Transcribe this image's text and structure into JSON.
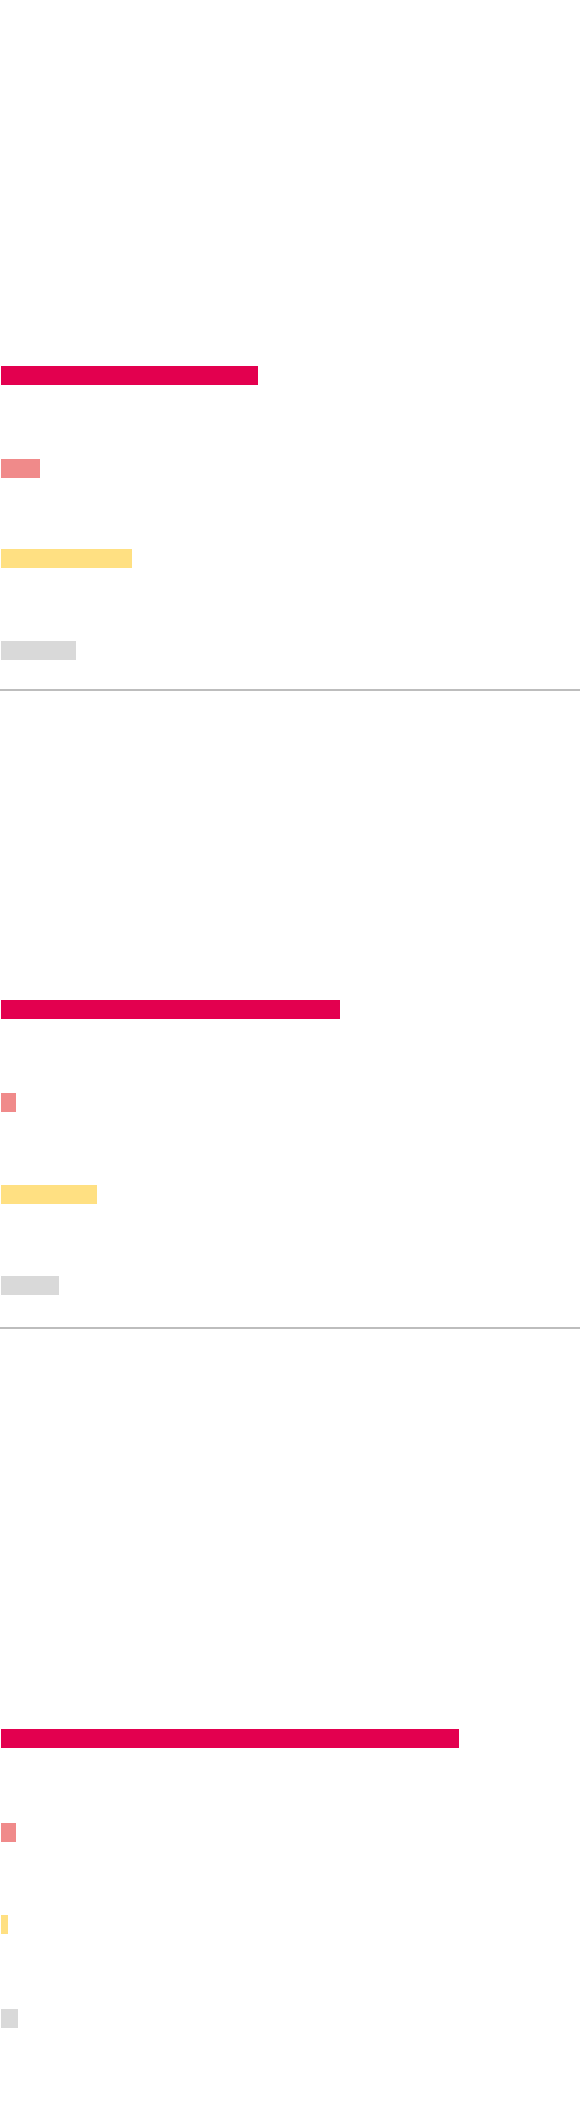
{
  "chart_data": [
    {
      "type": "bar",
      "orientation": "horizontal",
      "title": "",
      "categories": [
        "",
        "",
        "",
        ""
      ],
      "values": [
        258,
        39,
        131,
        75
      ],
      "colors": [
        "#e3004f",
        "#f08a8a",
        "#ffe082",
        "#d9d9d9"
      ],
      "xlim": [
        0,
        580
      ],
      "grid": false,
      "legend": "none"
    },
    {
      "type": "bar",
      "orientation": "horizontal",
      "title": "",
      "categories": [
        "",
        "",
        "",
        ""
      ],
      "values": [
        340,
        15,
        96,
        58
      ],
      "colors": [
        "#e3004f",
        "#f08a8a",
        "#ffe082",
        "#d9d9d9"
      ],
      "xlim": [
        0,
        580
      ],
      "grid": false,
      "legend": "none"
    },
    {
      "type": "bar",
      "orientation": "horizontal",
      "title": "",
      "categories": [
        "",
        "",
        "",
        ""
      ],
      "values": [
        460,
        15,
        7,
        17
      ],
      "colors": [
        "#e3004f",
        "#f08a8a",
        "#ffe082",
        "#d9d9d9"
      ],
      "xlim": [
        0,
        580
      ],
      "grid": false,
      "legend": "none"
    }
  ]
}
